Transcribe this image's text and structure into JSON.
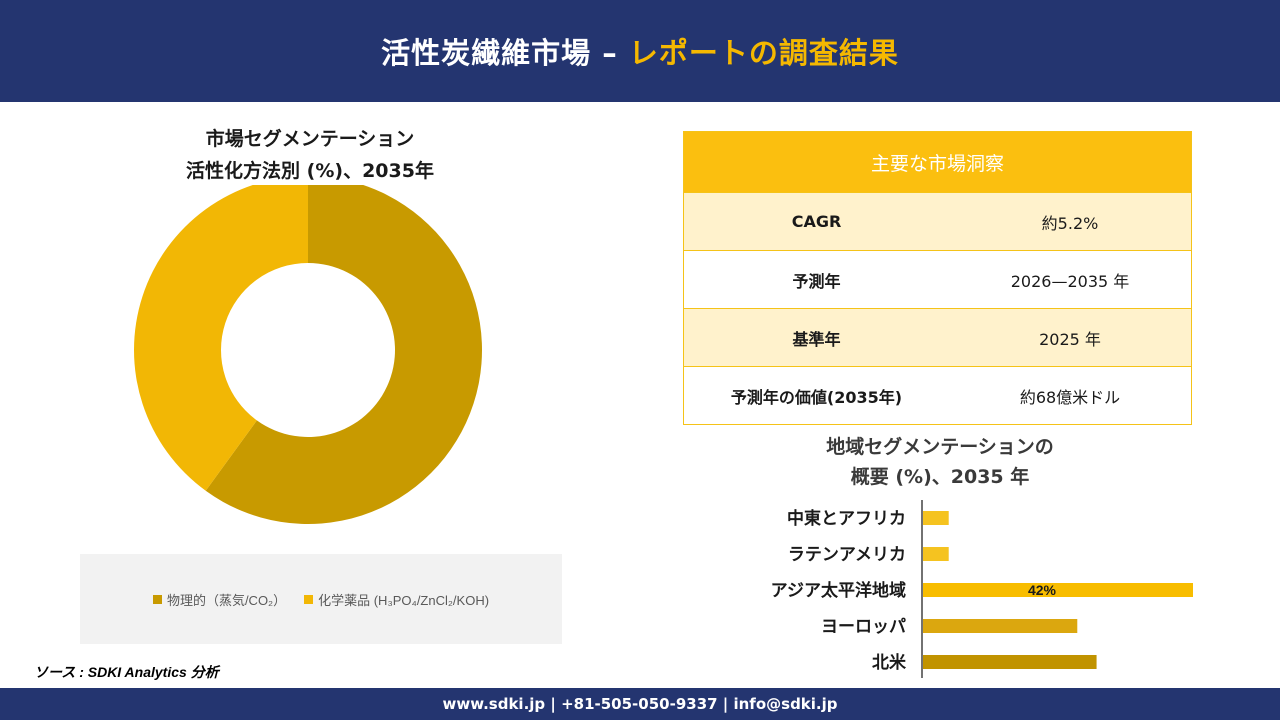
{
  "header": {
    "title_main": "活性炭繊維市場 – ",
    "title_accent": "レポートの調査結果"
  },
  "donut": {
    "title_line1": "市場セグメンテーション",
    "title_line2": "活性化方法別 (%)、2035年"
  },
  "insights": {
    "heading": "主要な市場洞察",
    "rows": [
      {
        "label": "CAGR",
        "value": "約5.2%"
      },
      {
        "label": "予測年",
        "value": "2026—2035 年"
      },
      {
        "label": "基準年",
        "value": "2025 年"
      },
      {
        "label": "予測年の価値(2035年)",
        "value": "約68億米ドル"
      }
    ]
  },
  "bar": {
    "title_line1": "地域セグメンテーションの",
    "title_line2": "概要 (%)、2035 年"
  },
  "source": "ソース : SDKI Analytics 分析",
  "footer": "www.sdki.jp | +81-505-050-9337 | info@sdki.jp",
  "chart_data": [
    {
      "type": "pie",
      "categories": [
        "物理的（蒸気/CO₂）",
        "化学薬品 (H₃PO₄/ZnCl₂/KOH)"
      ],
      "values": [
        60,
        40
      ],
      "colors": [
        "#c89a00",
        "#f2b705"
      ],
      "legend_position": "bottom",
      "title": "市場セグメンテーション 活性化方法別 (%)、2035年"
    },
    {
      "type": "bar",
      "orientation": "horizontal",
      "categories": [
        "中東とアフリカ",
        "ラテンアメリカ",
        "アジア太平洋地域",
        "ヨーロッパ",
        "北米"
      ],
      "values": [
        4,
        4,
        42,
        24,
        27
      ],
      "labels": [
        "",
        "",
        "42%",
        "",
        ""
      ],
      "colors": [
        "#f5c320",
        "#f5c320",
        "#f8bd00",
        "#dba70f",
        "#c19300"
      ],
      "title": "地域セグメンテーションの 概要 (%)、2035 年",
      "xlim": [
        0,
        42
      ]
    }
  ]
}
